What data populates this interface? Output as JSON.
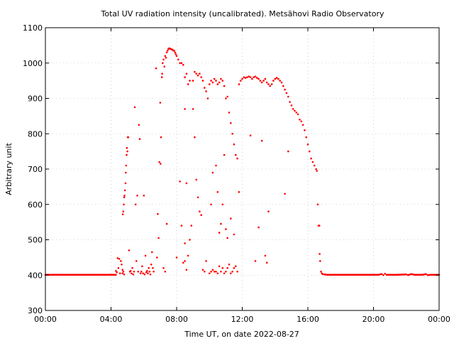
{
  "chart_data": {
    "type": "scatter",
    "title": "Total UV radiation intensity (uncalibrated). Metsähovi Radio Observatory",
    "xlabel": "Time UT, on date 2022-08-27",
    "ylabel": "Arbitrary unit",
    "xlim": [
      0,
      24
    ],
    "ylim": [
      300,
      1100
    ],
    "x_ticks": [
      0,
      4,
      8,
      12,
      16,
      20,
      24
    ],
    "x_tick_labels": [
      "00:00",
      "04:00",
      "08:00",
      "12:00",
      "16:00",
      "20:00",
      "00:00"
    ],
    "y_ticks": [
      300,
      400,
      500,
      600,
      700,
      800,
      900,
      1000,
      1100
    ],
    "y_tick_labels": [
      "300",
      "400",
      "500",
      "600",
      "700",
      "800",
      "900",
      "1000",
      "1100"
    ],
    "grid": true,
    "marker_color": "#ff0000",
    "series": [
      {
        "x_unit": "hours UT",
        "points": [
          [
            0.0,
            401
          ],
          [
            0.5,
            401
          ],
          [
            1.0,
            401
          ],
          [
            1.5,
            401
          ],
          [
            2.0,
            401
          ],
          [
            2.5,
            401
          ],
          [
            3.0,
            401
          ],
          [
            3.5,
            401
          ],
          [
            4.0,
            401
          ],
          [
            4.3,
            401
          ],
          [
            4.3,
            412
          ],
          [
            4.35,
            408
          ],
          [
            4.4,
            448
          ],
          [
            4.45,
            420
          ],
          [
            4.5,
            446
          ],
          [
            4.55,
            405
          ],
          [
            4.6,
            440
          ],
          [
            4.65,
            430
          ],
          [
            4.7,
            415
          ],
          [
            4.7,
            405
          ],
          [
            4.75,
            410
          ],
          [
            4.8,
            402
          ],
          [
            4.72,
            572
          ],
          [
            4.75,
            580
          ],
          [
            4.78,
            600
          ],
          [
            4.8,
            620
          ],
          [
            4.82,
            625
          ],
          [
            4.85,
            640
          ],
          [
            4.88,
            660
          ],
          [
            4.9,
            690
          ],
          [
            4.92,
            710
          ],
          [
            4.95,
            740
          ],
          [
            4.97,
            760
          ],
          [
            5.0,
            750
          ],
          [
            5.02,
            790
          ],
          [
            5.05,
            790
          ],
          [
            5.1,
            470
          ],
          [
            5.15,
            410
          ],
          [
            5.2,
            412
          ],
          [
            5.25,
            405
          ],
          [
            5.3,
            420
          ],
          [
            5.35,
            402
          ],
          [
            5.4,
            410
          ],
          [
            5.45,
            875
          ],
          [
            5.5,
            600
          ],
          [
            5.55,
            440
          ],
          [
            5.6,
            625
          ],
          [
            5.65,
            410
          ],
          [
            5.7,
            825
          ],
          [
            5.75,
            785
          ],
          [
            5.8,
            405
          ],
          [
            5.85,
            410
          ],
          [
            5.9,
            425
          ],
          [
            5.95,
            405
          ],
          [
            6.0,
            625
          ],
          [
            6.05,
            402
          ],
          [
            6.1,
            455
          ],
          [
            6.15,
            408
          ],
          [
            6.2,
            412
          ],
          [
            6.25,
            405
          ],
          [
            6.3,
            420
          ],
          [
            6.35,
            410
          ],
          [
            6.4,
            402
          ],
          [
            6.45,
            430
          ],
          [
            6.5,
            465
          ],
          [
            6.55,
            420
          ],
          [
            6.6,
            410
          ],
          [
            6.75,
            985
          ],
          [
            6.8,
            450
          ],
          [
            6.85,
            573
          ],
          [
            6.9,
            505
          ],
          [
            6.95,
            720
          ],
          [
            7.0,
            888
          ],
          [
            7.02,
            715
          ],
          [
            7.05,
            790
          ],
          [
            7.1,
            960
          ],
          [
            7.12,
            970
          ],
          [
            7.15,
            1000
          ],
          [
            7.2,
            1010
          ],
          [
            7.25,
            990
          ],
          [
            7.3,
            1020
          ],
          [
            7.35,
            1015
          ],
          [
            7.4,
            1030
          ],
          [
            7.45,
            1035
          ],
          [
            7.5,
            1040
          ],
          [
            7.55,
            1042
          ],
          [
            7.6,
            1040
          ],
          [
            7.65,
            1040
          ],
          [
            7.7,
            1038
          ],
          [
            7.75,
            1038
          ],
          [
            7.8,
            1035
          ],
          [
            7.85,
            1035
          ],
          [
            7.9,
            1030
          ],
          [
            7.95,
            1025
          ],
          [
            8.0,
            1020
          ],
          [
            8.1,
            1010
          ],
          [
            8.2,
            1000
          ],
          [
            8.3,
            1000
          ],
          [
            8.4,
            995
          ],
          [
            7.2,
            420
          ],
          [
            7.3,
            410
          ],
          [
            7.4,
            545
          ],
          [
            8.0,
            450
          ],
          [
            8.2,
            665
          ],
          [
            8.3,
            540
          ],
          [
            8.5,
            870
          ],
          [
            8.6,
            660
          ],
          [
            8.4,
            435
          ],
          [
            8.5,
            440
          ],
          [
            8.5,
            490
          ],
          [
            8.6,
            415
          ],
          [
            8.7,
            455
          ],
          [
            8.8,
            500
          ],
          [
            8.9,
            540
          ],
          [
            9.0,
            870
          ],
          [
            9.1,
            790
          ],
          [
            9.2,
            670
          ],
          [
            9.3,
            620
          ],
          [
            9.4,
            580
          ],
          [
            9.5,
            570
          ],
          [
            9.6,
            415
          ],
          [
            9.7,
            410
          ],
          [
            9.8,
            440
          ],
          [
            8.5,
            960
          ],
          [
            8.6,
            970
          ],
          [
            8.7,
            940
          ],
          [
            8.8,
            950
          ],
          [
            9.0,
            950
          ],
          [
            9.1,
            975
          ],
          [
            9.2,
            970
          ],
          [
            9.3,
            965
          ],
          [
            9.4,
            970
          ],
          [
            9.5,
            960
          ],
          [
            9.6,
            950
          ],
          [
            9.7,
            930
          ],
          [
            9.8,
            920
          ],
          [
            9.9,
            900
          ],
          [
            10.0,
            405
          ],
          [
            10.1,
            410
          ],
          [
            10.2,
            415
          ],
          [
            10.3,
            410
          ],
          [
            10.4,
            410
          ],
          [
            10.5,
            405
          ],
          [
            10.6,
            425
          ],
          [
            10.7,
            410
          ],
          [
            10.8,
            420
          ],
          [
            10.9,
            405
          ],
          [
            11.0,
            410
          ],
          [
            11.1,
            420
          ],
          [
            11.2,
            430
          ],
          [
            11.3,
            405
          ],
          [
            11.4,
            410
          ],
          [
            11.5,
            420
          ],
          [
            11.6,
            425
          ],
          [
            11.7,
            410
          ],
          [
            10.0,
            940
          ],
          [
            10.1,
            950
          ],
          [
            10.2,
            945
          ],
          [
            10.3,
            955
          ],
          [
            10.4,
            950
          ],
          [
            10.5,
            940
          ],
          [
            10.6,
            945
          ],
          [
            10.7,
            955
          ],
          [
            10.8,
            950
          ],
          [
            10.9,
            935
          ],
          [
            11.0,
            900
          ],
          [
            11.1,
            905
          ],
          [
            11.2,
            860
          ],
          [
            11.3,
            830
          ],
          [
            11.4,
            800
          ],
          [
            11.5,
            770
          ],
          [
            11.6,
            740
          ],
          [
            11.7,
            730
          ],
          [
            11.8,
            635
          ],
          [
            10.1,
            600
          ],
          [
            10.2,
            690
          ],
          [
            10.4,
            710
          ],
          [
            10.5,
            635
          ],
          [
            10.6,
            520
          ],
          [
            10.7,
            545
          ],
          [
            10.8,
            600
          ],
          [
            10.9,
            740
          ],
          [
            11.0,
            530
          ],
          [
            11.1,
            505
          ],
          [
            11.3,
            560
          ],
          [
            11.5,
            515
          ],
          [
            11.8,
            940
          ],
          [
            11.9,
            950
          ],
          [
            12.0,
            955
          ],
          [
            12.1,
            960
          ],
          [
            12.2,
            958
          ],
          [
            12.3,
            960
          ],
          [
            12.4,
            962
          ],
          [
            12.5,
            960
          ],
          [
            12.6,
            955
          ],
          [
            12.7,
            960
          ],
          [
            12.8,
            962
          ],
          [
            12.9,
            958
          ],
          [
            13.0,
            955
          ],
          [
            13.1,
            950
          ],
          [
            13.2,
            945
          ],
          [
            13.3,
            950
          ],
          [
            13.4,
            955
          ],
          [
            13.5,
            945
          ],
          [
            13.6,
            940
          ],
          [
            13.7,
            935
          ],
          [
            13.8,
            940
          ],
          [
            13.9,
            950
          ],
          [
            14.0,
            955
          ],
          [
            14.1,
            958
          ],
          [
            14.2,
            955
          ],
          [
            14.3,
            950
          ],
          [
            14.4,
            945
          ],
          [
            14.5,
            935
          ],
          [
            14.6,
            925
          ],
          [
            14.7,
            915
          ],
          [
            14.8,
            905
          ],
          [
            14.9,
            890
          ],
          [
            12.5,
            795
          ],
          [
            12.8,
            440
          ],
          [
            13.0,
            535
          ],
          [
            13.2,
            780
          ],
          [
            13.4,
            455
          ],
          [
            13.5,
            435
          ],
          [
            13.6,
            580
          ],
          [
            14.6,
            630
          ],
          [
            14.8,
            750
          ],
          [
            15.0,
            880
          ],
          [
            15.1,
            870
          ],
          [
            15.2,
            865
          ],
          [
            15.3,
            860
          ],
          [
            15.4,
            855
          ],
          [
            15.5,
            840
          ],
          [
            15.6,
            835
          ],
          [
            15.7,
            825
          ],
          [
            15.8,
            810
          ],
          [
            15.9,
            790
          ],
          [
            16.0,
            770
          ],
          [
            16.1,
            750
          ],
          [
            16.2,
            730
          ],
          [
            16.3,
            720
          ],
          [
            16.4,
            710
          ],
          [
            16.5,
            700
          ],
          [
            16.55,
            695
          ],
          [
            16.6,
            600
          ],
          [
            16.65,
            540
          ],
          [
            16.7,
            540
          ],
          [
            16.72,
            460
          ],
          [
            16.75,
            440
          ],
          [
            16.8,
            410
          ],
          [
            16.85,
            405
          ],
          [
            16.9,
            403
          ],
          [
            17.0,
            402
          ],
          [
            17.2,
            401
          ],
          [
            17.5,
            401
          ],
          [
            18.0,
            401
          ],
          [
            18.5,
            401
          ],
          [
            19.0,
            401
          ],
          [
            19.5,
            401
          ],
          [
            20.0,
            401
          ],
          [
            20.3,
            401
          ],
          [
            20.5,
            403
          ],
          [
            20.6,
            400
          ],
          [
            20.7,
            404
          ],
          [
            20.8,
            401
          ],
          [
            21.0,
            401
          ],
          [
            21.5,
            401
          ],
          [
            22.0,
            402
          ],
          [
            22.1,
            400
          ],
          [
            22.3,
            403
          ],
          [
            22.5,
            401
          ],
          [
            23.0,
            401
          ],
          [
            23.2,
            403
          ],
          [
            23.3,
            400
          ],
          [
            23.5,
            401
          ],
          [
            24.0,
            401
          ]
        ]
      }
    ]
  }
}
